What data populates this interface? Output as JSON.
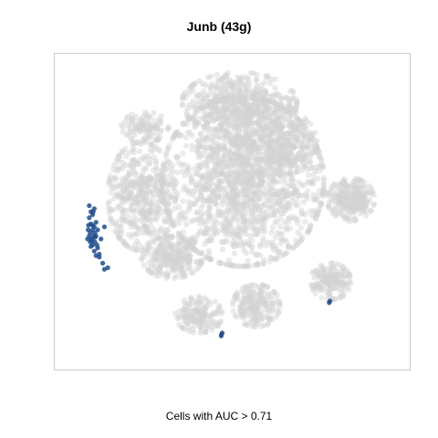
{
  "chart_data": {
    "type": "scatter",
    "title": "Junb (43g)",
    "xlabel": "Cells with AUC > 0.71",
    "ylabel": "",
    "axes_visible": false,
    "grid": false,
    "legend": "none",
    "colors": {
      "background_cells": "#d3d3d3",
      "highlighted_cells": "#1f4e8c",
      "frame": "#cccccc"
    },
    "series": [
      {
        "values_units": "relative t-SNE coordinates (x, y in [0,1], y up)",
        "clusters": [
          {
            "cx": 0.53,
            "cy": 0.6,
            "rx": 0.24,
            "ry": 0.28,
            "n": 1600
          },
          {
            "cx": 0.52,
            "cy": 0.86,
            "rx": 0.17,
            "ry": 0.1,
            "n": 500
          },
          {
            "cx": 0.63,
            "cy": 0.73,
            "rx": 0.12,
            "ry": 0.11,
            "n": 300
          },
          {
            "cx": 0.23,
            "cy": 0.55,
            "rx": 0.1,
            "ry": 0.18,
            "n": 450
          },
          {
            "cx": 0.32,
            "cy": 0.35,
            "rx": 0.09,
            "ry": 0.07,
            "n": 260
          },
          {
            "cx": 0.85,
            "cy": 0.54,
            "rx": 0.07,
            "ry": 0.07,
            "n": 250
          },
          {
            "cx": 0.79,
            "cy": 0.27,
            "rx": 0.06,
            "ry": 0.06,
            "n": 170
          },
          {
            "cx": 0.57,
            "cy": 0.19,
            "rx": 0.07,
            "ry": 0.07,
            "n": 200
          },
          {
            "cx": 0.4,
            "cy": 0.16,
            "rx": 0.07,
            "ry": 0.06,
            "n": 150
          },
          {
            "cx": 0.24,
            "cy": 0.78,
            "rx": 0.07,
            "ry": 0.05,
            "n": 100
          }
        ]
      },
      {
        "values_units": "relative t-SNE coordinates (x, y in [0,1], y up)",
        "points": [
          [
            0.075,
            0.52
          ],
          [
            0.08,
            0.5
          ],
          [
            0.075,
            0.48
          ],
          [
            0.085,
            0.49
          ],
          [
            0.072,
            0.44
          ],
          [
            0.078,
            0.43
          ],
          [
            0.085,
            0.44
          ],
          [
            0.09,
            0.45
          ],
          [
            0.075,
            0.42
          ],
          [
            0.082,
            0.41
          ],
          [
            0.088,
            0.42
          ],
          [
            0.078,
            0.4
          ],
          [
            0.085,
            0.39
          ],
          [
            0.092,
            0.4
          ],
          [
            0.095,
            0.42
          ],
          [
            0.07,
            0.41
          ],
          [
            0.1,
            0.44
          ],
          [
            0.1,
            0.38
          ],
          [
            0.09,
            0.37
          ],
          [
            0.08,
            0.385
          ],
          [
            0.12,
            0.45
          ],
          [
            0.11,
            0.41
          ],
          [
            0.105,
            0.35
          ],
          [
            0.095,
            0.355
          ],
          [
            0.12,
            0.31
          ],
          [
            0.13,
            0.315
          ],
          [
            0.115,
            0.33
          ],
          [
            0.087,
            0.5
          ],
          [
            0.08,
            0.46
          ],
          [
            0.092,
            0.43
          ],
          [
            0.098,
            0.39
          ],
          [
            0.073,
            0.455
          ],
          [
            0.085,
            0.455
          ],
          [
            0.095,
            0.465
          ],
          [
            0.082,
            0.405
          ],
          [
            0.092,
            0.415
          ],
          [
            0.786,
            0.2
          ],
          [
            0.788,
            0.205
          ],
          [
            0.467,
            0.095
          ],
          [
            0.469,
            0.1
          ],
          [
            0.466,
            0.09
          ],
          [
            0.105,
            0.36
          ],
          [
            0.09,
            0.51
          ]
        ]
      }
    ]
  }
}
